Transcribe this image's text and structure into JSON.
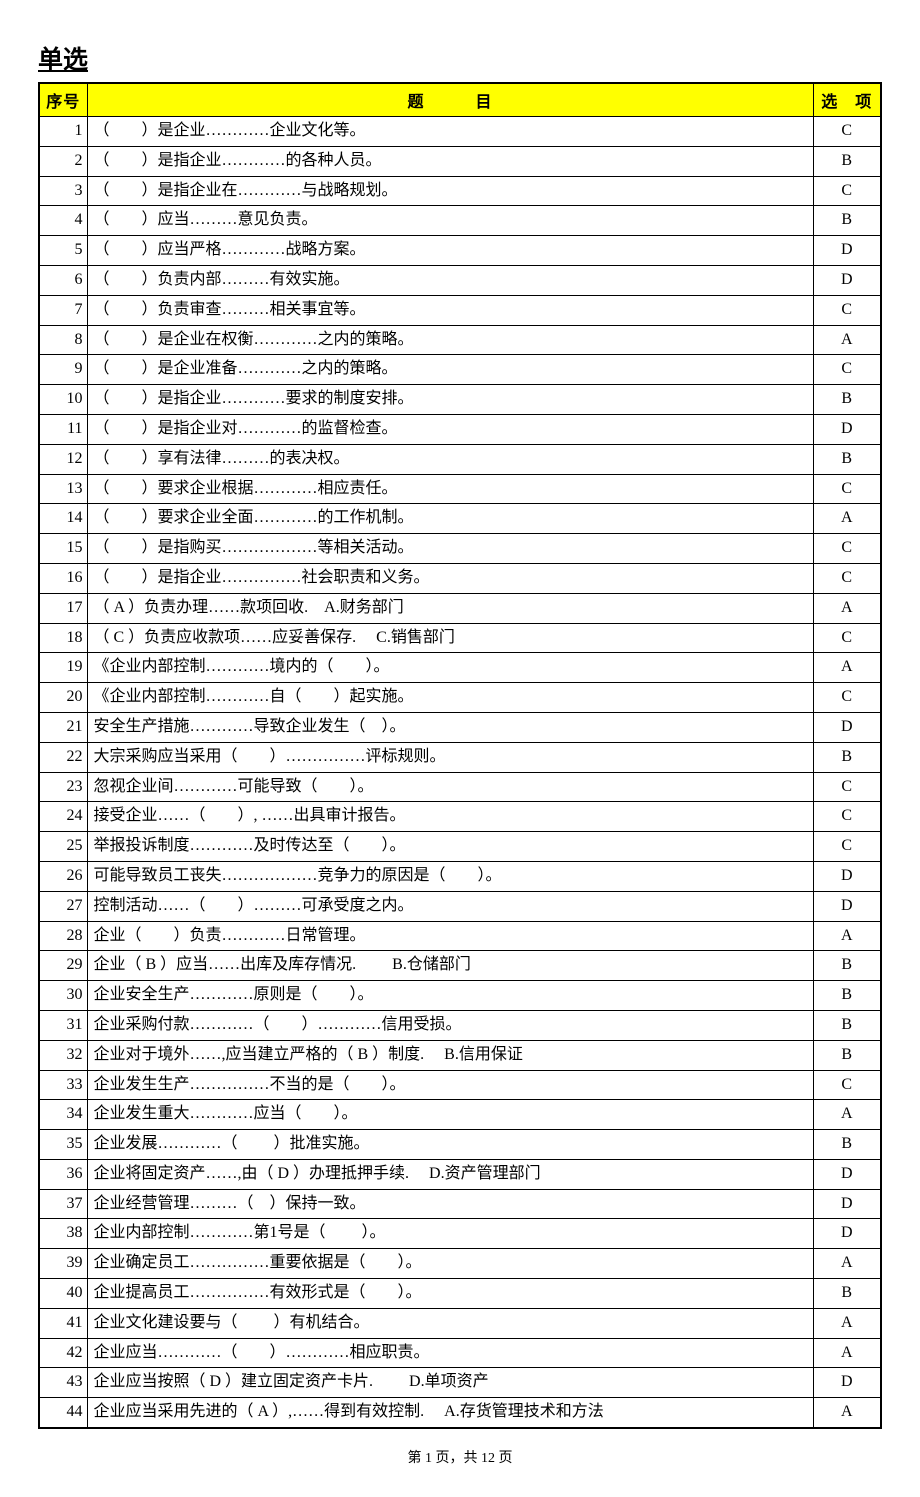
{
  "title": "单选",
  "header": {
    "num": "序号",
    "question": "题　　　目",
    "answer": "选　项"
  },
  "rows": [
    {
      "n": "1",
      "q": "（　　）是企业…………企业文化等。",
      "a": "C"
    },
    {
      "n": "2",
      "q": "（　　）是指企业…………的各种人员。",
      "a": "B"
    },
    {
      "n": "3",
      "q": "（　　）是指企业在…………与战略规划。",
      "a": "C"
    },
    {
      "n": "4",
      "q": "（　　）应当………意见负责。",
      "a": "B"
    },
    {
      "n": "5",
      "q": "（　　）应当严格…………战略方案。",
      "a": "D"
    },
    {
      "n": "6",
      "q": "（　　）负责内部………有效实施。",
      "a": "D"
    },
    {
      "n": "7",
      "q": "（　　）负责审查………相关事宜等。",
      "a": "C"
    },
    {
      "n": "8",
      "q": "（　　）是企业在权衡…………之内的策略。",
      "a": "A"
    },
    {
      "n": "9",
      "q": "（　　）是企业准备…………之内的策略。",
      "a": "C"
    },
    {
      "n": "10",
      "q": "（　　）是指企业…………要求的制度安排。",
      "a": "B"
    },
    {
      "n": "11",
      "q": "（　　）是指企业对…………的监督检查。",
      "a": "D"
    },
    {
      "n": "12",
      "q": "（　　）享有法律………的表决权。",
      "a": "B"
    },
    {
      "n": "13",
      "q": "（　　）要求企业根据…………相应责任。",
      "a": "C"
    },
    {
      "n": "14",
      "q": "（　　）要求企业全面…………的工作机制。",
      "a": "A"
    },
    {
      "n": "15",
      "q": "（　　）是指购买………………等相关活动。",
      "a": "C"
    },
    {
      "n": "16",
      "q": "（　　）是指企业……………社会职责和义务。",
      "a": "C"
    },
    {
      "n": "17",
      "q": "（ A ）负责办理……款项回收.　A.财务部门",
      "a": "A"
    },
    {
      "n": "18",
      "q": "（ C ）负责应收款项……应妥善保存.　 C.销售部门",
      "a": "C"
    },
    {
      "n": "19",
      "q": "《企业内部控制…………境内的（　　）。",
      "a": "A"
    },
    {
      "n": "20",
      "q": "《企业内部控制…………自（　　）起实施。",
      "a": "C"
    },
    {
      "n": "21",
      "q": "安全生产措施…………导致企业发生（　）。",
      "a": "D"
    },
    {
      "n": "22",
      "q": "大宗采购应当采用（　　）……………评标规则。",
      "a": "B"
    },
    {
      "n": "23",
      "q": "忽视企业间…………可能导致（　　）。",
      "a": "C"
    },
    {
      "n": "24",
      "q": "接受企业……（　　）, ……出具审计报告。",
      "a": "C"
    },
    {
      "n": "25",
      "q": "举报投诉制度…………及时传达至（　　）。",
      "a": "C"
    },
    {
      "n": "26",
      "q": "可能导致员工丧失………………竞争力的原因是（　　）。",
      "a": "D"
    },
    {
      "n": "27",
      "q": "控制活动……（　　）………可承受度之内。",
      "a": "D"
    },
    {
      "n": "28",
      "q": "企业（　　）负责…………日常管理。",
      "a": "A"
    },
    {
      "n": "29",
      "q": "企业（ B ）应当……出库及库存情况.　　 B.仓储部门",
      "a": "B"
    },
    {
      "n": "30",
      "q": "企业安全生产…………原则是（　　）。",
      "a": "B"
    },
    {
      "n": "31",
      "q": "企业采购付款…………（　　）…………信用受损。",
      "a": "B"
    },
    {
      "n": "32",
      "q": "企业对于境外……,应当建立严格的（ B ）制度.　 B.信用保证",
      "a": "B"
    },
    {
      "n": "33",
      "q": "企业发生生产……………不当的是（　　）。",
      "a": "C"
    },
    {
      "n": "34",
      "q": "企业发生重大…………应当（　　）。",
      "a": "A"
    },
    {
      "n": "35",
      "q": "企业发展…………（　　 ）批准实施。",
      "a": "B"
    },
    {
      "n": "36",
      "q": "企业将固定资产……,由（ D ）办理抵押手续.　 D.资产管理部门",
      "a": "D"
    },
    {
      "n": "37",
      "q": "企业经营管理………（　）保持一致。",
      "a": "D"
    },
    {
      "n": "38",
      "q": "企业内部控制…………第1号是（　　 ）。",
      "a": "D"
    },
    {
      "n": "39",
      "q": "企业确定员工……………重要依据是（　　）。",
      "a": "A"
    },
    {
      "n": "40",
      "q": "企业提高员工……………有效形式是（　　）。",
      "a": "B"
    },
    {
      "n": "41",
      "q": "企业文化建设要与（ 　　）有机结合。",
      "a": "A"
    },
    {
      "n": "42",
      "q": "企业应当…………（　　）…………相应职责。",
      "a": "A"
    },
    {
      "n": "43",
      "q": "企业应当按照（ D ）建立固定资产卡片.　　 D.单项资产",
      "a": "D"
    },
    {
      "n": "44",
      "q": "企业应当采用先进的（ A ）,……得到有效控制.　 A.存货管理技术和方法",
      "a": "A"
    }
  ],
  "footer": "第 1 页，共 12 页"
}
